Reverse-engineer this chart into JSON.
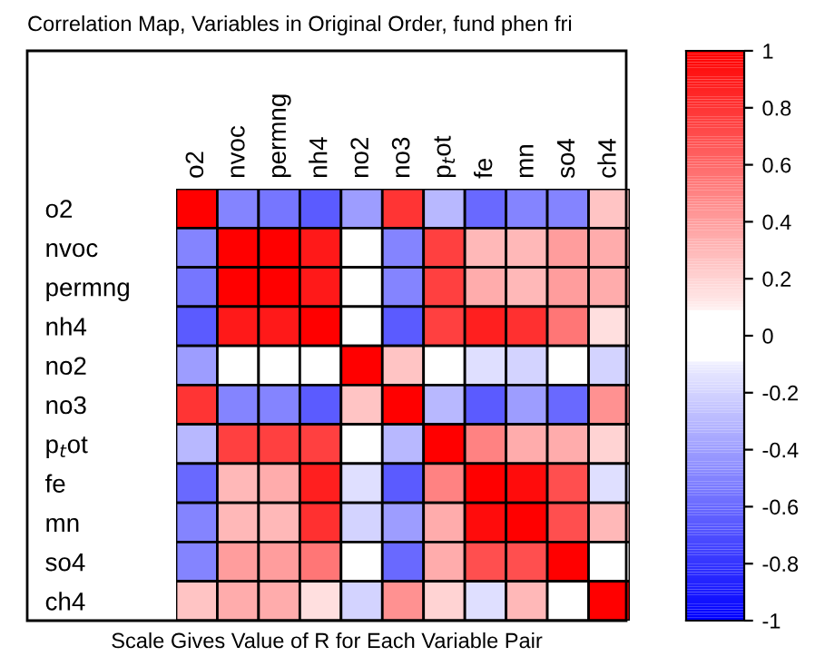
{
  "chart_data": {
    "type": "heatmap",
    "title": "Correlation Map, Variables in Original Order, fund phen fri",
    "annotations": [
      "Scale Gives Value of R for Each Variable Pair"
    ],
    "categories": [
      "o2",
      "nvoc",
      "permng",
      "nh4",
      "no2",
      "no3",
      "p$_{t}$ot",
      "fe",
      "mn",
      "so4",
      "ch4"
    ],
    "y_categories": [
      "o2",
      "nvoc",
      "permng",
      "nh4",
      "no2",
      "no3",
      "p$_{t}$ot",
      "fe",
      "mn",
      "so4",
      "ch4"
    ],
    "cells": [
      [
        1,
        -0.5,
        -0.55,
        -0.65,
        -0.4,
        0.8,
        -0.3,
        -0.6,
        -0.5,
        -0.5,
        0.25
      ],
      [
        -0.5,
        1,
        1,
        0.9,
        0,
        -0.5,
        0.75,
        0.3,
        0.3,
        0.4,
        0.35
      ],
      [
        -0.55,
        1,
        1,
        0.9,
        0,
        -0.5,
        0.75,
        0.35,
        0.3,
        0.4,
        0.35
      ],
      [
        -0.65,
        0.9,
        0.9,
        1,
        0,
        -0.65,
        0.75,
        0.88,
        0.82,
        0.55,
        0.15
      ],
      [
        -0.4,
        0,
        0,
        0,
        1,
        0.25,
        0,
        -0.15,
        -0.2,
        0,
        -0.2
      ],
      [
        0.8,
        -0.5,
        -0.5,
        -0.65,
        0.25,
        1,
        -0.3,
        -0.65,
        -0.4,
        -0.6,
        0.45
      ],
      [
        -0.3,
        0.75,
        0.75,
        0.75,
        0,
        -0.3,
        1,
        0.5,
        0.35,
        0.35,
        0.2
      ],
      [
        -0.6,
        0.3,
        0.35,
        0.88,
        -0.15,
        -0.65,
        0.5,
        1,
        0.95,
        0.7,
        -0.15
      ],
      [
        -0.5,
        0.3,
        0.3,
        0.82,
        -0.2,
        -0.4,
        0.35,
        0.95,
        1,
        0.7,
        0.3
      ],
      [
        -0.5,
        0.4,
        0.4,
        0.55,
        0,
        -0.6,
        0.35,
        0.7,
        0.7,
        1,
        0
      ],
      [
        0.25,
        0.35,
        0.35,
        0.15,
        -0.2,
        0.45,
        0.2,
        -0.15,
        0.3,
        0,
        1
      ]
    ],
    "clim": [
      -1,
      1
    ],
    "cticks": [
      1,
      0.8,
      0.6,
      0.4,
      0.2,
      0,
      -0.2,
      -0.4,
      -0.6,
      -0.8,
      -1
    ]
  }
}
